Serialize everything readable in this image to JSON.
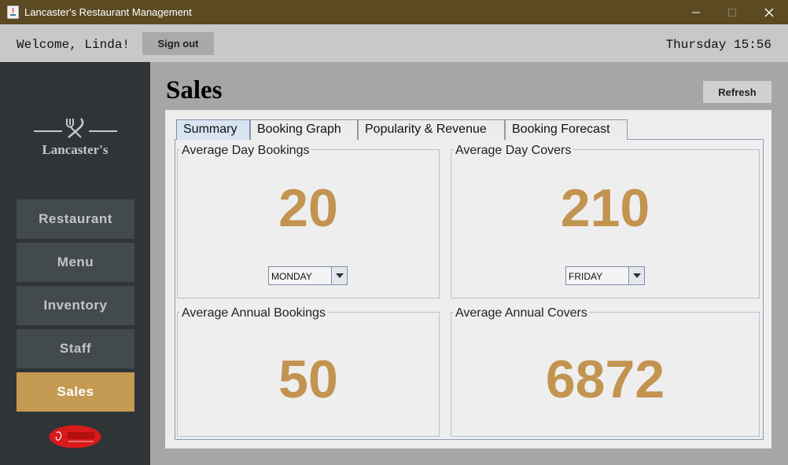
{
  "window": {
    "title": "Lancaster's Restaurant Management"
  },
  "topbar": {
    "welcome": "Welcome, Linda!",
    "sign_out": "Sign out",
    "datetime": "Thursday 15:56"
  },
  "sidebar": {
    "logo_text": "Lancaster's",
    "items": [
      {
        "label": "Restaurant",
        "active": false
      },
      {
        "label": "Menu",
        "active": false
      },
      {
        "label": "Inventory",
        "active": false
      },
      {
        "label": "Staff",
        "active": false
      },
      {
        "label": "Sales",
        "active": true
      }
    ],
    "badge_text": "CULINARY"
  },
  "main": {
    "title": "Sales",
    "refresh": "Refresh",
    "tabs": [
      {
        "label": "Summary",
        "active": true
      },
      {
        "label": "Booking Graph",
        "active": false
      },
      {
        "label": "Popularity & Revenue",
        "active": false
      },
      {
        "label": "Booking Forecast",
        "active": false
      }
    ],
    "stats": {
      "day_bookings": {
        "label": "Average Day Bookings",
        "value": "20",
        "selected_day": "MONDAY"
      },
      "day_covers": {
        "label": "Average Day Covers",
        "value": "210",
        "selected_day": "FRIDAY"
      },
      "annual_bookings": {
        "label": "Average Annual Bookings",
        "value": "50"
      },
      "annual_covers": {
        "label": "Average Annual Covers",
        "value": "6872"
      }
    }
  },
  "colors": {
    "accent": "#c59a53",
    "value_text": "#c39350",
    "sidebar_bg": "#2f3437",
    "titlebar_bg": "#5c4a22"
  }
}
